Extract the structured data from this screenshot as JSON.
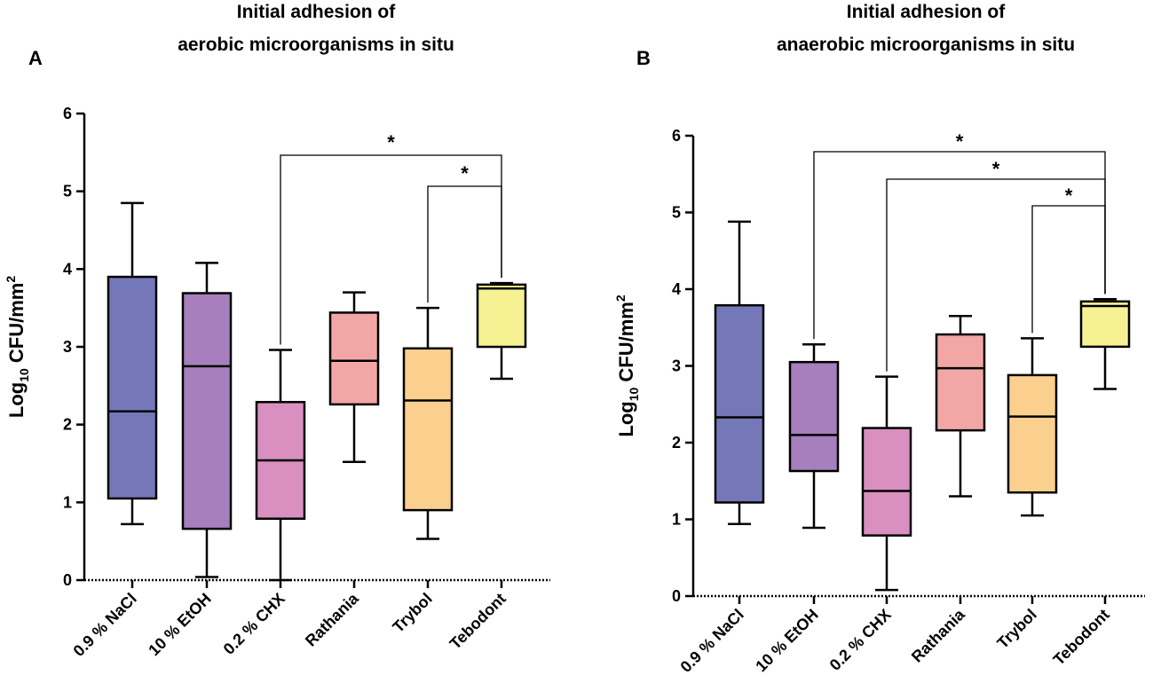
{
  "chart_data": [
    {
      "type": "box",
      "panel": "A",
      "title_line1": "Initial adhesion of",
      "title_line2": "aerobic microorganisms in situ",
      "ylabel_main": "Log",
      "ylabel_sub": "10",
      "ylabel_unit": " CFU/mm",
      "ylabel_sup": "2",
      "ylim": [
        0,
        6
      ],
      "yticks": [
        "0",
        "1",
        "2",
        "3",
        "4",
        "5",
        "6"
      ],
      "categories": [
        "0.9 % NaCl",
        "10 % EtOH",
        "0.2 % CHX",
        "Rathania",
        "Trybol",
        "Tebodont"
      ],
      "colors": [
        "#7478b8",
        "#a67fbc",
        "#d98fbf",
        "#f2a6a6",
        "#fbd08e",
        "#f6f294"
      ],
      "boxes": [
        {
          "min": 0.72,
          "q1": 1.05,
          "median": 2.17,
          "q3": 3.9,
          "max": 4.85
        },
        {
          "min": 0.04,
          "q1": 0.66,
          "median": 2.75,
          "q3": 3.69,
          "max": 4.08
        },
        {
          "min": 0.0,
          "q1": 0.79,
          "median": 1.54,
          "q3": 2.29,
          "max": 2.96
        },
        {
          "min": 1.52,
          "q1": 2.26,
          "median": 2.82,
          "q3": 3.44,
          "max": 3.7
        },
        {
          "min": 0.53,
          "q1": 0.9,
          "median": 2.31,
          "q3": 2.98,
          "max": 3.5
        },
        {
          "min": 2.59,
          "q1": 3.0,
          "median": 3.75,
          "q3": 3.8,
          "max": 3.82
        }
      ],
      "significance": [
        {
          "from": 2,
          "to": 5,
          "label": "*"
        },
        {
          "from": 4,
          "to": 5,
          "label": "*"
        }
      ]
    },
    {
      "type": "box",
      "panel": "B",
      "title_line1": "Initial adhesion of",
      "title_line2": "anaerobic microorganisms in situ",
      "ylabel_main": "Log",
      "ylabel_sub": "10",
      "ylabel_unit": " CFU/mm",
      "ylabel_sup": "2",
      "ylim": [
        0,
        6
      ],
      "yticks": [
        "0",
        "1",
        "2",
        "3",
        "4",
        "5",
        "6"
      ],
      "categories": [
        "0.9 % NaCl",
        "10 % EtOH",
        "0.2 % CHX",
        "Rathania",
        "Trybol",
        "Tebodont"
      ],
      "colors": [
        "#7478b8",
        "#a67fbc",
        "#d98fbf",
        "#f2a6a6",
        "#fbd08e",
        "#f6f294"
      ],
      "boxes": [
        {
          "min": 0.94,
          "q1": 1.22,
          "median": 2.33,
          "q3": 3.79,
          "max": 4.88
        },
        {
          "min": 0.89,
          "q1": 1.63,
          "median": 2.1,
          "q3": 3.05,
          "max": 3.28
        },
        {
          "min": 0.08,
          "q1": 0.79,
          "median": 1.37,
          "q3": 2.19,
          "max": 2.86
        },
        {
          "min": 1.3,
          "q1": 2.16,
          "median": 2.97,
          "q3": 3.41,
          "max": 3.65
        },
        {
          "min": 1.05,
          "q1": 1.35,
          "median": 2.34,
          "q3": 2.88,
          "max": 3.36
        },
        {
          "min": 2.7,
          "q1": 3.25,
          "median": 3.78,
          "q3": 3.84,
          "max": 3.87
        }
      ],
      "significance": [
        {
          "from": 1,
          "to": 5,
          "label": "*"
        },
        {
          "from": 2,
          "to": 5,
          "label": "*"
        },
        {
          "from": 4,
          "to": 5,
          "label": "*"
        }
      ]
    }
  ]
}
